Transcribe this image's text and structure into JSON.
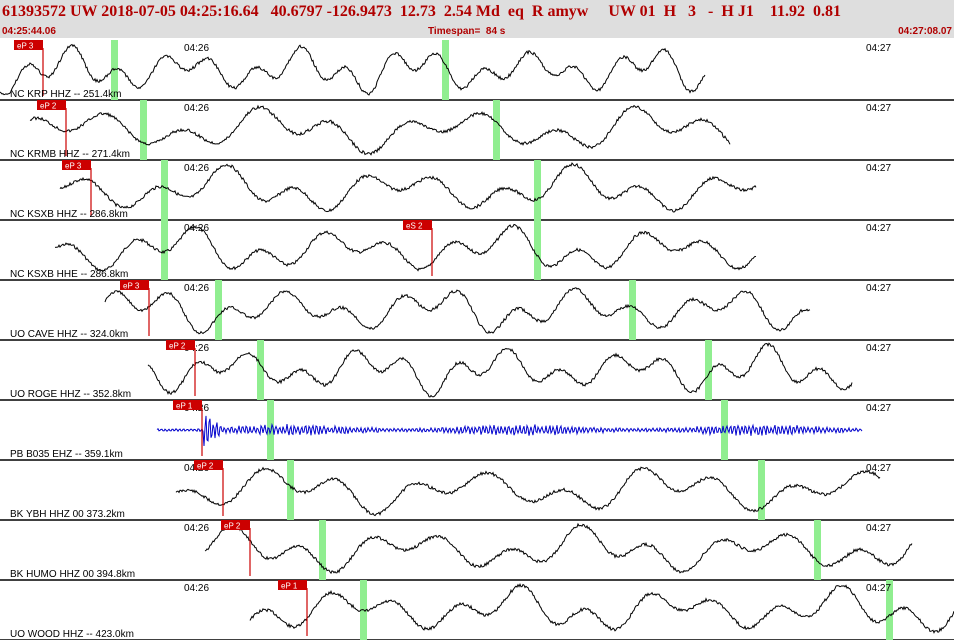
{
  "header": {
    "title": "61393572 UW 2018-07-05 04:25:16.64   40.6797 -126.9473  12.73  2.54 Md  eq  R amyw     UW 01  H   3   -  H J1    11.92  0.81",
    "start_time": "04:25:44.06",
    "timespan": "Timespan=  84 s",
    "end_time": "04:27:08.07"
  },
  "minute_labels": {
    "left": "04:26",
    "right": "04:27"
  },
  "colors": {
    "trace": "#000000",
    "bb_trace": "#0000cc",
    "pick": "#cc0000",
    "marker": "#90ee90",
    "border": "#000000"
  },
  "stations": [
    {
      "label": "NC KRP HHZ -- 251.4km",
      "pick_label": "eP 3",
      "color": "black"
    },
    {
      "label": "NC KRMB HHZ -- 271.4km",
      "pick_label": "eP 2",
      "color": "black"
    },
    {
      "label": "NC KSXB HHZ -- 286.8km",
      "pick_label": "eP 3",
      "color": "black"
    },
    {
      "label": "NC KSXB HHE -- 286.8km",
      "pick_label": "eS 2",
      "color": "black"
    },
    {
      "label": "UO CAVE HHZ -- 324.0km",
      "pick_label": "eP 3",
      "color": "black"
    },
    {
      "label": "UO ROGE HHZ -- 352.8km",
      "pick_label": "eP 2",
      "color": "black"
    },
    {
      "label": "PB B035 EHZ -- 359.1km",
      "pick_label": "eP 1",
      "color": "blue"
    },
    {
      "label": "BK YBH HHZ 00 373.2km",
      "pick_label": "eP 2",
      "color": "black"
    },
    {
      "label": "BK HUMO HHZ 00 394.8km",
      "pick_label": "eP 2",
      "color": "black"
    },
    {
      "label": "UO WOOD HHZ -- 423.0km",
      "pick_label": "eP 1",
      "color": "black"
    }
  ]
}
